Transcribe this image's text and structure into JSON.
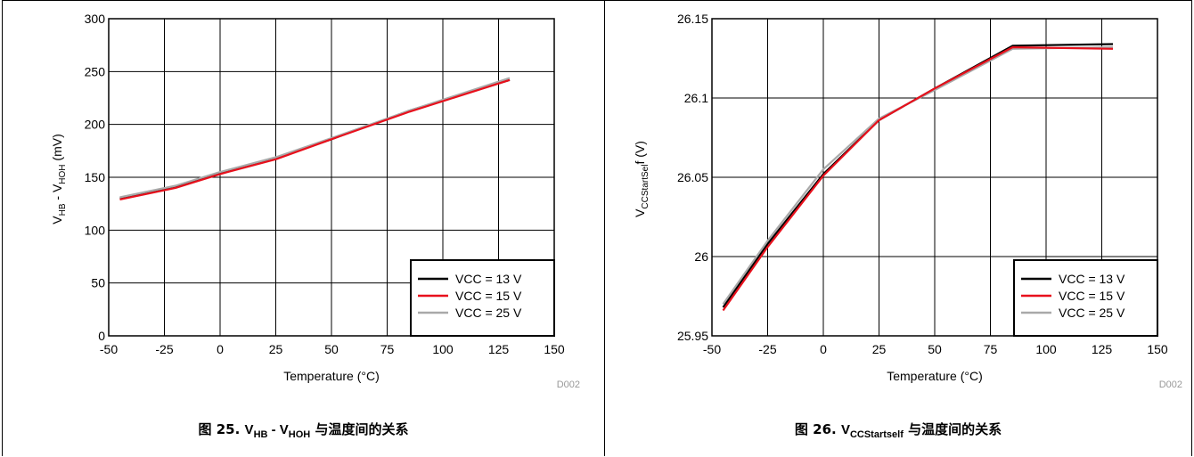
{
  "charts": {
    "left": {
      "figure_id": "D002",
      "caption": {
        "prefix": "图 25. ",
        "v1": "V",
        "s1": "HB",
        "mid": " - V",
        "s2": "HOH",
        "suffix": " 与温度间的关系"
      },
      "xlabel": "Temperature (°C)",
      "ylabel": {
        "a": "V",
        "b": "HB",
        "c": " - V",
        "d": "HOH",
        "e": " (mV)"
      }
    },
    "right": {
      "figure_id": "D002",
      "caption": {
        "prefix": "图 26. ",
        "v1": "V",
        "s1": "CCStartself",
        "suffix": " 与温度间的关系"
      },
      "xlabel": "Temperature (°C)",
      "ylabel": {
        "a": "V",
        "b": "CCStartSel",
        "c": "f (V)"
      }
    },
    "legend": [
      "VCC = 13 V",
      "VCC = 15 V",
      "VCC = 25 V"
    ]
  },
  "colors": {
    "vcc13": "#000000",
    "vcc15": "#e8101c",
    "vcc25": "#a9a9a9"
  },
  "chart_data": [
    {
      "type": "line",
      "xlabel": "Temperature (°C)",
      "ylabel": "VHB - VHOH (mV)",
      "xlim": [
        -50,
        150
      ],
      "ylim": [
        0,
        300
      ],
      "xticks": [
        -50,
        -25,
        0,
        25,
        50,
        75,
        100,
        125,
        150
      ],
      "yticks": [
        0,
        50,
        100,
        150,
        200,
        250,
        300
      ],
      "grid": true,
      "legend_position": "bottom-right",
      "series": [
        {
          "name": "VCC = 13 V",
          "x": [
            -45,
            -20,
            0,
            25,
            50,
            85,
            130
          ],
          "y": [
            130,
            141,
            154,
            168,
            186,
            213,
            242
          ]
        },
        {
          "name": "VCC = 15 V",
          "x": [
            -45,
            -20,
            0,
            25,
            50,
            85,
            130
          ],
          "y": [
            129,
            140,
            153,
            167,
            186,
            212,
            242
          ]
        },
        {
          "name": "VCC = 25 V",
          "x": [
            -45,
            -20,
            0,
            25,
            50,
            85,
            130
          ],
          "y": [
            131,
            142,
            155,
            169,
            187,
            213,
            244
          ]
        }
      ]
    },
    {
      "type": "line",
      "xlabel": "Temperature (°C)",
      "ylabel": "VCCStartSelf (V)",
      "xlim": [
        -50,
        150
      ],
      "ylim": [
        25.95,
        26.15
      ],
      "xticks": [
        -50,
        -25,
        0,
        25,
        50,
        75,
        100,
        125,
        150
      ],
      "yticks": [
        25.95,
        26,
        26.05,
        26.1,
        26.15
      ],
      "grid": true,
      "legend_position": "bottom-right",
      "series": [
        {
          "name": "VCC = 13 V",
          "x": [
            -45,
            -25,
            0,
            25,
            50,
            85,
            130
          ],
          "y": [
            25.968,
            26.008,
            26.052,
            26.086,
            26.106,
            26.133,
            26.134
          ]
        },
        {
          "name": "VCC = 15 V",
          "x": [
            -45,
            -25,
            0,
            25,
            50,
            85,
            130
          ],
          "y": [
            25.966,
            26.006,
            26.051,
            26.086,
            26.106,
            26.132,
            26.131
          ]
        },
        {
          "name": "VCC = 25 V",
          "x": [
            -45,
            -25,
            0,
            25,
            50,
            85,
            130
          ],
          "y": [
            25.97,
            26.01,
            26.055,
            26.087,
            26.105,
            26.131,
            26.132
          ]
        }
      ]
    }
  ]
}
